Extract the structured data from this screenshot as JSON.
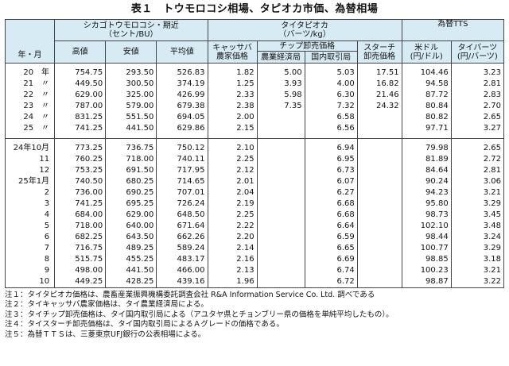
{
  "title": "表１　トウモロコシ相場、タピオカ市価、為替相場",
  "header": {
    "year_month": "年・月",
    "corn_group": "シカゴトウモロコシ・期近\n（セント/BU）",
    "corn_high": "高値",
    "corn_low": "安値",
    "corn_avg": "平均値",
    "tapioca_group": "タイタピオカ\n（バーツ/kg）",
    "cassava": "キャッサバ\n農家価格",
    "chip_group": "チップ卸売価格",
    "chip_agri": "農業経済局",
    "chip_domestic": "国内取引局",
    "starch": "スターチ\n卸売価格",
    "fx_group": "為替TTS",
    "usd": "米ドル\n(円/ドル)",
    "baht": "タイバーツ\n(円/バーツ)"
  },
  "annual_rows": [
    {
      "label": "20　年",
      "high": "754.75",
      "low": "293.50",
      "avg": "526.83",
      "cassava": "1.82",
      "chip_agri": "5.00",
      "chip_dom": "5.03",
      "starch": "17.51",
      "usd": "104.46",
      "baht": "3.23"
    },
    {
      "label": "21　〃",
      "high": "449.50",
      "low": "300.50",
      "avg": "374.19",
      "cassava": "1.25",
      "chip_agri": "3.93",
      "chip_dom": "4.00",
      "starch": "16.82",
      "usd": "94.58",
      "baht": "2.81"
    },
    {
      "label": "22　〃",
      "high": "629.00",
      "low": "325.00",
      "avg": "426.99",
      "cassava": "2.33",
      "chip_agri": "5.98",
      "chip_dom": "6.30",
      "starch": "21.46",
      "usd": "87.72",
      "baht": "2.83"
    },
    {
      "label": "23　〃",
      "high": "787.00",
      "low": "579.00",
      "avg": "679.38",
      "cassava": "2.38",
      "chip_agri": "7.35",
      "chip_dom": "7.32",
      "starch": "24.32",
      "usd": "80.84",
      "baht": "2.70"
    },
    {
      "label": "24　〃",
      "high": "831.25",
      "low": "551.50",
      "avg": "694.05",
      "cassava": "2.00",
      "chip_agri": "",
      "chip_dom": "6.58",
      "starch": "",
      "usd": "80.82",
      "baht": "2.65"
    },
    {
      "label": "25　〃",
      "high": "741.25",
      "low": "441.50",
      "avg": "629.86",
      "cassava": "2.15",
      "chip_agri": "",
      "chip_dom": "6.56",
      "starch": "",
      "usd": "97.71",
      "baht": "3.27"
    }
  ],
  "monthly_rows": [
    {
      "label": "24年10月",
      "high": "773.25",
      "low": "736.75",
      "avg": "750.12",
      "cassava": "2.10",
      "chip_agri": "",
      "chip_dom": "6.94",
      "starch": "",
      "usd": "79.98",
      "baht": "2.65"
    },
    {
      "label": "11",
      "high": "760.25",
      "low": "718.00",
      "avg": "740.11",
      "cassava": "2.25",
      "chip_agri": "",
      "chip_dom": "6.95",
      "starch": "",
      "usd": "81.89",
      "baht": "2.72"
    },
    {
      "label": "12",
      "high": "753.25",
      "low": "691.50",
      "avg": "717.95",
      "cassava": "2.12",
      "chip_agri": "",
      "chip_dom": "6.73",
      "starch": "",
      "usd": "84.64",
      "baht": "2.81"
    },
    {
      "label": "25年1月",
      "high": "740.50",
      "low": "680.25",
      "avg": "714.65",
      "cassava": "2.01",
      "chip_agri": "",
      "chip_dom": "6.07",
      "starch": "",
      "usd": "90.24",
      "baht": "3.06"
    },
    {
      "label": "2",
      "high": "736.00",
      "low": "690.25",
      "avg": "707.01",
      "cassava": "2.04",
      "chip_agri": "",
      "chip_dom": "6.27",
      "starch": "",
      "usd": "94.23",
      "baht": "3.21"
    },
    {
      "label": "3",
      "high": "741.25",
      "low": "695.25",
      "avg": "726.24",
      "cassava": "2.19",
      "chip_agri": "",
      "chip_dom": "6.68",
      "starch": "",
      "usd": "95.80",
      "baht": "3.29"
    },
    {
      "label": "4",
      "high": "684.00",
      "low": "629.00",
      "avg": "648.50",
      "cassava": "2.25",
      "chip_agri": "",
      "chip_dom": "6.68",
      "starch": "",
      "usd": "98.73",
      "baht": "3.45"
    },
    {
      "label": "5",
      "high": "718.00",
      "low": "640.00",
      "avg": "671.64",
      "cassava": "2.22",
      "chip_agri": "",
      "chip_dom": "6.64",
      "starch": "",
      "usd": "102.10",
      "baht": "3.48"
    },
    {
      "label": "6",
      "high": "682.25",
      "low": "643.50",
      "avg": "662.26",
      "cassava": "2.20",
      "chip_agri": "",
      "chip_dom": "6.59",
      "starch": "",
      "usd": "98.44",
      "baht": "3.24"
    },
    {
      "label": "7",
      "high": "716.75",
      "low": "489.25",
      "avg": "589.24",
      "cassava": "2.14",
      "chip_agri": "",
      "chip_dom": "6.65",
      "starch": "",
      "usd": "100.77",
      "baht": "3.29"
    },
    {
      "label": "8",
      "high": "515.75",
      "low": "455.25",
      "avg": "483.17",
      "cassava": "2.16",
      "chip_agri": "",
      "chip_dom": "6.69",
      "starch": "",
      "usd": "98.85",
      "baht": "3.18"
    },
    {
      "label": "9",
      "high": "498.00",
      "low": "441.50",
      "avg": "466.00",
      "cassava": "2.13",
      "chip_agri": "",
      "chip_dom": "6.74",
      "starch": "",
      "usd": "100.23",
      "baht": "3.21"
    },
    {
      "label": "10",
      "high": "449.25",
      "low": "428.25",
      "avg": "439.16",
      "cassava": "1.96",
      "chip_agri": "",
      "chip_dom": "6.72",
      "starch": "",
      "usd": "98.87",
      "baht": "3.22"
    }
  ],
  "notes": [
    "注１：タイタピオカ価格は、農畜産業振興機構委託調査会社 R&A Information Service Co. Ltd. 調べである",
    "注２：タイキャッサバ農家価格は、タイ農業経済局による。",
    "注３：タイチップ卸売価格は、タイ国内取引局による（アユタヤ県とチョンブリー県の価格を単純平均したもの）。",
    "注４：タイスターチ卸売価格は、タイ国内取引局によるＡグレードの価格である。",
    "注５：為替ＴＴＳは、三菱東京UFJ銀行の公表相場による。"
  ]
}
